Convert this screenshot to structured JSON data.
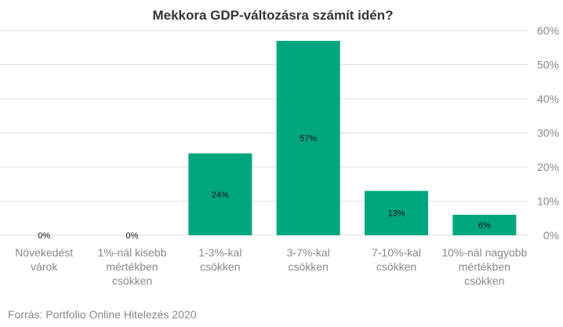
{
  "chart_data": {
    "type": "bar",
    "title": "Mekkora GDP-változásra számít idén?",
    "categories": [
      [
        "Növekedést",
        "várok"
      ],
      [
        "1%-nál kisebb",
        "mértékben",
        "csökken"
      ],
      [
        "1-3%-kal",
        "csökken"
      ],
      [
        "3-7%-kal",
        "csökken"
      ],
      [
        "7-10%-kal",
        "csökken"
      ],
      [
        "10%-nál nagyobb",
        "mértékben",
        "csökken"
      ]
    ],
    "values": [
      0,
      0,
      24,
      57,
      13,
      6
    ],
    "data_labels": [
      "0%",
      "0%",
      "24%",
      "57%",
      "13%",
      "6%"
    ],
    "ylim": [
      0,
      60
    ],
    "yticks": [
      0,
      10,
      20,
      30,
      40,
      50,
      60
    ],
    "ytick_labels": [
      "0%",
      "10%",
      "20%",
      "30%",
      "40%",
      "50%",
      "60%"
    ],
    "y_axis_side": "right",
    "grid": true,
    "legend": "none",
    "colors": {
      "bar": "#00a67e",
      "grid": "#dddddd",
      "text": "#888888",
      "title": "#333333"
    }
  },
  "source": "Forrás: Portfolio Online Hitelezés 2020"
}
